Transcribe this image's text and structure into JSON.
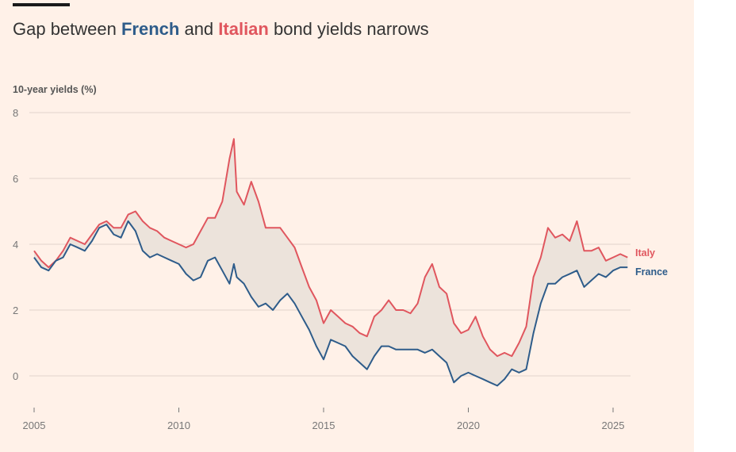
{
  "title": {
    "prefix": "Gap between ",
    "french": "French",
    "middle": " and ",
    "italian": "Italian",
    "suffix": " bond yields narrows"
  },
  "colors": {
    "france": "#2e5c8a",
    "italy": "#e0565e",
    "fill": "#ece3db",
    "grid": "#e0d4cc",
    "background": "#fff1e8"
  },
  "chart_data": {
    "type": "line",
    "title": "Gap between French and Italian bond yields narrows",
    "ylabel": "10-year yields (%)",
    "xlabel": "",
    "ylim": [
      -1,
      8
    ],
    "xlim": [
      2005,
      2025.6
    ],
    "yticks": [
      0,
      2,
      4,
      6,
      8
    ],
    "xticks": [
      2005,
      2010,
      2015,
      2020,
      2025
    ],
    "grid": true,
    "legend": "inline labels at right end of lines",
    "series": [
      {
        "name": "Italy",
        "color": "#e0565e",
        "x": [
          2005,
          2005.25,
          2005.5,
          2005.75,
          2006,
          2006.25,
          2006.5,
          2006.75,
          2007,
          2007.25,
          2007.5,
          2007.75,
          2008,
          2008.25,
          2008.5,
          2008.75,
          2009,
          2009.25,
          2009.5,
          2009.75,
          2010,
          2010.25,
          2010.5,
          2010.75,
          2011,
          2011.25,
          2011.5,
          2011.75,
          2011.9,
          2012,
          2012.25,
          2012.5,
          2012.75,
          2013,
          2013.25,
          2013.5,
          2013.75,
          2014,
          2014.25,
          2014.5,
          2014.75,
          2015,
          2015.25,
          2015.5,
          2015.75,
          2016,
          2016.25,
          2016.5,
          2016.75,
          2017,
          2017.25,
          2017.5,
          2017.75,
          2018,
          2018.25,
          2018.5,
          2018.75,
          2019,
          2019.25,
          2019.5,
          2019.75,
          2020,
          2020.25,
          2020.5,
          2020.75,
          2021,
          2021.25,
          2021.5,
          2021.75,
          2022,
          2022.25,
          2022.5,
          2022.75,
          2023,
          2023.25,
          2023.5,
          2023.75,
          2024,
          2024.25,
          2024.5,
          2024.75,
          2025,
          2025.25,
          2025.5
        ],
        "values": [
          3.8,
          3.5,
          3.3,
          3.5,
          3.8,
          4.2,
          4.1,
          4.0,
          4.3,
          4.6,
          4.7,
          4.5,
          4.5,
          4.9,
          5.0,
          4.7,
          4.5,
          4.4,
          4.2,
          4.1,
          4.0,
          3.9,
          4.0,
          4.4,
          4.8,
          4.8,
          5.3,
          6.6,
          7.2,
          5.6,
          5.2,
          5.9,
          5.3,
          4.5,
          4.5,
          4.5,
          4.2,
          3.9,
          3.3,
          2.7,
          2.3,
          1.6,
          2.0,
          1.8,
          1.6,
          1.5,
          1.3,
          1.2,
          1.8,
          2.0,
          2.3,
          2.0,
          2.0,
          1.9,
          2.2,
          3.0,
          3.4,
          2.7,
          2.5,
          1.6,
          1.3,
          1.4,
          1.8,
          1.2,
          0.8,
          0.6,
          0.7,
          0.6,
          1.0,
          1.5,
          3.0,
          3.6,
          4.5,
          4.2,
          4.3,
          4.1,
          4.7,
          3.8,
          3.8,
          3.9,
          3.5,
          3.6,
          3.7,
          3.6
        ]
      },
      {
        "name": "France",
        "color": "#2e5c8a",
        "x": [
          2005,
          2005.25,
          2005.5,
          2005.75,
          2006,
          2006.25,
          2006.5,
          2006.75,
          2007,
          2007.25,
          2007.5,
          2007.75,
          2008,
          2008.25,
          2008.5,
          2008.75,
          2009,
          2009.25,
          2009.5,
          2009.75,
          2010,
          2010.25,
          2010.5,
          2010.75,
          2011,
          2011.25,
          2011.5,
          2011.75,
          2011.9,
          2012,
          2012.25,
          2012.5,
          2012.75,
          2013,
          2013.25,
          2013.5,
          2013.75,
          2014,
          2014.25,
          2014.5,
          2014.75,
          2015,
          2015.25,
          2015.5,
          2015.75,
          2016,
          2016.25,
          2016.5,
          2016.75,
          2017,
          2017.25,
          2017.5,
          2017.75,
          2018,
          2018.25,
          2018.5,
          2018.75,
          2019,
          2019.25,
          2019.5,
          2019.75,
          2020,
          2020.25,
          2020.5,
          2020.75,
          2021,
          2021.25,
          2021.5,
          2021.75,
          2022,
          2022.25,
          2022.5,
          2022.75,
          2023,
          2023.25,
          2023.5,
          2023.75,
          2024,
          2024.25,
          2024.5,
          2024.75,
          2025,
          2025.25,
          2025.5
        ],
        "values": [
          3.6,
          3.3,
          3.2,
          3.5,
          3.6,
          4.0,
          3.9,
          3.8,
          4.1,
          4.5,
          4.6,
          4.3,
          4.2,
          4.7,
          4.4,
          3.8,
          3.6,
          3.7,
          3.6,
          3.5,
          3.4,
          3.1,
          2.9,
          3.0,
          3.5,
          3.6,
          3.2,
          2.8,
          3.4,
          3.0,
          2.8,
          2.4,
          2.1,
          2.2,
          2.0,
          2.3,
          2.5,
          2.2,
          1.8,
          1.4,
          0.9,
          0.5,
          1.1,
          1.0,
          0.9,
          0.6,
          0.4,
          0.2,
          0.6,
          0.9,
          0.9,
          0.8,
          0.8,
          0.8,
          0.8,
          0.7,
          0.8,
          0.6,
          0.4,
          -0.2,
          0.0,
          0.1,
          0.0,
          -0.1,
          -0.2,
          -0.3,
          -0.1,
          0.2,
          0.1,
          0.2,
          1.3,
          2.2,
          2.8,
          2.8,
          3.0,
          3.1,
          3.2,
          2.7,
          2.9,
          3.1,
          3.0,
          3.2,
          3.3,
          3.3
        ]
      }
    ]
  }
}
